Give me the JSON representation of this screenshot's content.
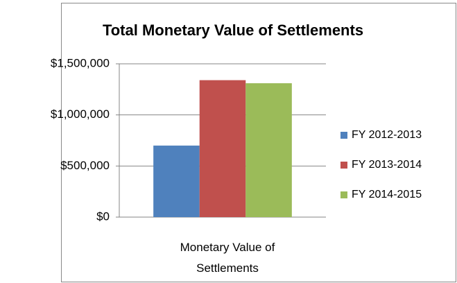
{
  "chart_data": {
    "type": "bar",
    "title": "Total Monetary Value of Settlements",
    "categories": [
      "Monetary Value of Settlements"
    ],
    "series": [
      {
        "name": "FY 2012-2013",
        "color": "#4f81bd",
        "values": [
          700000
        ]
      },
      {
        "name": "FY 2013-2014",
        "color": "#c0504d",
        "values": [
          1340000
        ]
      },
      {
        "name": "FY 2014-2015",
        "color": "#9bbb59",
        "values": [
          1310000
        ]
      }
    ],
    "ylim": [
      0,
      1500000
    ],
    "yticks": [
      {
        "value": 0,
        "label": "$0"
      },
      {
        "value": 500000,
        "label": "$500,000"
      },
      {
        "value": 1000000,
        "label": "$1,000,000"
      },
      {
        "value": 1500000,
        "label": "$1,500,000"
      }
    ],
    "grid": true,
    "legend": "right"
  }
}
